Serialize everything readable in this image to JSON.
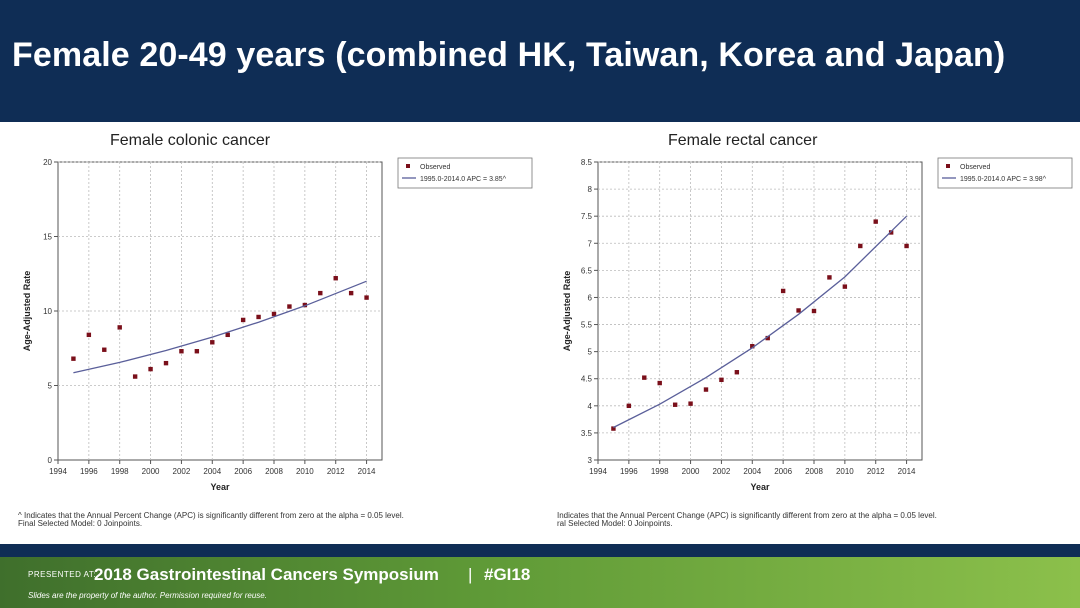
{
  "slide": {
    "title": "Female 20-49 years (combined HK, Taiwan, Korea and Japan)"
  },
  "footer": {
    "presented_at": "PRESENTED AT:",
    "symposium": "2018 Gastrointestinal Cancers Symposium",
    "separator": "|",
    "hashtag": "#GI18",
    "disclaimer": "Slides are the property of the author. Permission required for reuse."
  },
  "chart_data": [
    {
      "type": "scatter",
      "title": "Female  colonic cancer",
      "xlabel": "Year",
      "ylabel": "Age-Adjusted Rate",
      "xlim": [
        1994,
        2015
      ],
      "ylim": [
        0,
        20
      ],
      "xticks": [
        "1994",
        "1996",
        "1998",
        "2000",
        "2002",
        "2004",
        "2006",
        "2008",
        "2010",
        "2012",
        "2014"
      ],
      "yticks": [
        "0",
        "5",
        "10",
        "15",
        "20"
      ],
      "grid": true,
      "legend_position": "top-right",
      "series": [
        {
          "name": "Observed",
          "kind": "points",
          "x": [
            1995,
            1996,
            1997,
            1998,
            1999,
            2000,
            2001,
            2002,
            2003,
            2004,
            2005,
            2006,
            2007,
            2008,
            2009,
            2010,
            2011,
            2012,
            2013,
            2014
          ],
          "y": [
            6.8,
            8.4,
            7.4,
            8.9,
            5.6,
            6.1,
            6.5,
            7.3,
            7.3,
            7.9,
            8.4,
            9.4,
            9.6,
            9.8,
            10.3,
            10.4,
            11.2,
            12.2,
            11.2,
            10.9
          ]
        },
        {
          "name": "1995.0-2014.0 APC = 3.85^",
          "kind": "line",
          "x": [
            1995,
            1998,
            2001,
            2004,
            2007,
            2010,
            2014
          ],
          "y": [
            5.85,
            6.55,
            7.35,
            8.25,
            9.25,
            10.35,
            12.0
          ]
        }
      ],
      "footnotes": [
        "^ Indicates that the Annual Percent Change (APC) is significantly different from zero at the alpha = 0.05 level.",
        "Final Selected Model: 0 Joinpoints."
      ]
    },
    {
      "type": "scatter",
      "title": "Female  rectal cancer",
      "xlabel": "Year",
      "ylabel": "Age-Adjusted Rate",
      "xlim": [
        1994,
        2015
      ],
      "ylim": [
        3,
        8.5
      ],
      "xticks": [
        "1994",
        "1996",
        "1998",
        "2000",
        "2002",
        "2004",
        "2006",
        "2008",
        "2010",
        "2012",
        "2014"
      ],
      "yticks": [
        "3",
        "3.5",
        "4",
        "4.5",
        "5",
        "5.5",
        "6",
        "6.5",
        "7",
        "7.5",
        "8",
        "8.5"
      ],
      "grid": true,
      "legend_position": "top-right",
      "series": [
        {
          "name": "Observed",
          "kind": "points",
          "x": [
            1995,
            1996,
            1997,
            1998,
            1999,
            2000,
            2001,
            2002,
            2003,
            2004,
            2005,
            2006,
            2007,
            2008,
            2009,
            2010,
            2011,
            2012,
            2013,
            2014
          ],
          "y": [
            3.58,
            4.0,
            4.52,
            4.42,
            4.02,
            4.04,
            4.3,
            4.48,
            4.62,
            5.1,
            5.25,
            6.12,
            5.76,
            5.75,
            6.37,
            6.2,
            6.95,
            7.4,
            7.2,
            6.95
          ]
        },
        {
          "name": "1995.0-2014.0 APC = 3.98^",
          "kind": "line",
          "x": [
            1995,
            1998,
            2001,
            2004,
            2007,
            2010,
            2014
          ],
          "y": [
            3.6,
            4.03,
            4.52,
            5.07,
            5.69,
            6.38,
            7.5
          ]
        }
      ],
      "footnotes": [
        "Indicates that the Annual Percent Change (APC) is significantly different from zero at the alpha = 0.05 level.",
        "ral Selected Model: 0 Joinpoints."
      ]
    }
  ]
}
